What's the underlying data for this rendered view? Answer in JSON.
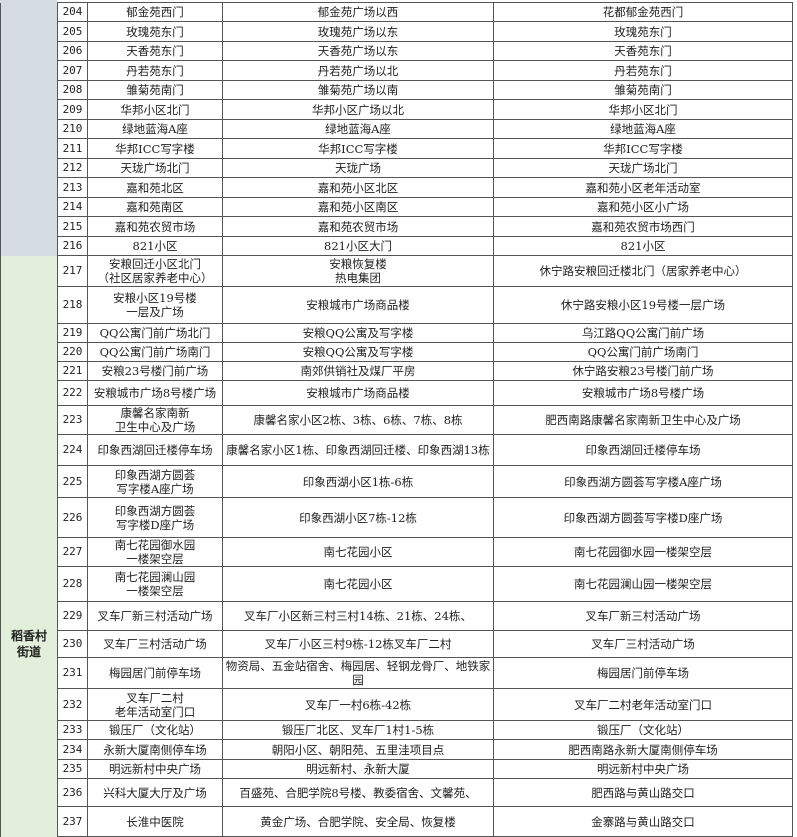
{
  "groups": [
    {
      "label": ""
    },
    {
      "label": "稻香村\n街道"
    }
  ],
  "rows": [
    {
      "no": "204",
      "site": "郁金苑西门",
      "area": "郁金苑广场以西",
      "addr": "花都郁金苑西门"
    },
    {
      "no": "205",
      "site": "玫瑰苑东门",
      "area": "玫瑰苑广场以东",
      "addr": "玫瑰苑东门"
    },
    {
      "no": "206",
      "site": "天香苑东门",
      "area": "天香苑广场以东",
      "addr": "天香苑东门"
    },
    {
      "no": "207",
      "site": "丹若苑东门",
      "area": "丹若苑广场以北",
      "addr": "丹若苑东门"
    },
    {
      "no": "208",
      "site": "雏菊苑南门",
      "area": "雏菊苑广场以南",
      "addr": "雏菊苑南门"
    },
    {
      "no": "209",
      "site": "华邦小区北门",
      "area": "华邦小区广场以北",
      "addr": "华邦小区北门"
    },
    {
      "no": "210",
      "site": "绿地蓝海A座",
      "area": "绿地蓝海A座",
      "addr": "绿地蓝海A座"
    },
    {
      "no": "211",
      "site": "华邦ICC写字楼",
      "area": "华邦ICC写字楼",
      "addr": "华邦ICC写字楼"
    },
    {
      "no": "212",
      "site": "天珑广场北门",
      "area": "天珑广场",
      "addr": "天珑广场北门"
    },
    {
      "no": "213",
      "site": "嘉和苑北区",
      "area": "嘉和苑小区北区",
      "addr": "嘉和苑小区老年活动室"
    },
    {
      "no": "214",
      "site": "嘉和苑南区",
      "area": "嘉和苑小区南区",
      "addr": "嘉和苑小区小广场"
    },
    {
      "no": "215",
      "site": "嘉和苑农贸市场",
      "area": "嘉和苑农贸市场",
      "addr": "嘉和苑农贸市场西门"
    },
    {
      "no": "216",
      "site": "821小区",
      "area": "821小区大门",
      "addr": "821小区"
    },
    {
      "no": "217",
      "site": "安粮回迁小区北门\n（社区居家养老中心）",
      "area": "安粮恢复楼\n热电集团",
      "addr": "休宁路安粮回迁楼北门（居家养老中心）"
    },
    {
      "no": "218",
      "site": "安粮小区19号楼\n一层及广场",
      "area": "安粮城市广场商品楼",
      "addr": "休宁路安粮小区19号楼一层广场"
    },
    {
      "no": "219",
      "site": "QQ公寓门前广场北门",
      "area": "安粮QQ公寓及写字楼",
      "addr": "乌江路QQ公寓门前广场"
    },
    {
      "no": "220",
      "site": "QQ公寓门前广场南门",
      "area": "安粮QQ公寓及写字楼",
      "addr": "QQ公寓门前广场南门"
    },
    {
      "no": "221",
      "site": "安粮23号楼门前广场",
      "area": "南郊供销社及煤厂平房",
      "addr": "休宁路安粮23号楼门前广场"
    },
    {
      "no": "222",
      "site": "安粮城市广场8号楼广场",
      "area": "安粮城市广场商品楼",
      "addr": "安粮城市广场8号楼广场"
    },
    {
      "no": "223",
      "site": "康馨名家南新\n卫生中心及广场",
      "area": "康馨名家小区2栋、3栋、6栋、7栋、8栋",
      "addr": "肥西南路康馨名家南新卫生中心及广场"
    },
    {
      "no": "224",
      "site": "印象西湖回迁楼停车场",
      "area": "康馨名家小区1栋、印象西湖回迁楼、印象西湖13栋",
      "addr": "印象西湖回迁楼停车场"
    },
    {
      "no": "225",
      "site": "印象西湖方圆荟\n写字楼A座广场",
      "area": "印象西湖小区1栋-6栋",
      "addr": "印象西湖方圆荟写字楼A座广场"
    },
    {
      "no": "226",
      "site": "印象西湖方圆荟\n写字楼D座广场",
      "area": "印象西湖小区7栋-12栋",
      "addr": "印象西湖方圆荟写字楼D座广场"
    },
    {
      "no": "227",
      "site": "南七花园御水园\n一楼架空层",
      "area": "南七花园小区",
      "addr": "南七花园御水园一楼架空层"
    },
    {
      "no": "228",
      "site": "南七花园澜山园\n一楼架空层",
      "area": "南七花园小区",
      "addr": "南七花园澜山园一楼架空层"
    },
    {
      "no": "229",
      "site": "叉车厂新三村活动广场",
      "area": "叉车厂小区新三村三村14栋、21栋、24栋、",
      "addr": "叉车厂新三村活动广场"
    },
    {
      "no": "230",
      "site": "叉车厂三村活动广场",
      "area": "叉车厂小区三村9栋-12栋叉车厂二村",
      "addr": "叉车厂三村活动广场"
    },
    {
      "no": "231",
      "site": "梅园居门前停车场",
      "area": "物资局、五金站宿舍、梅园居、轻钢龙骨厂、地铁家园",
      "addr": "梅园居门前停车场"
    },
    {
      "no": "232",
      "site": "叉车厂二村\n老年活动室门口",
      "area": "叉车厂一村6栋-42栋",
      "addr": "叉车厂二村老年活动室门口"
    },
    {
      "no": "233",
      "site": "锻压厂（文化站）",
      "area": "锻压厂北区、叉车厂1村1-5栋",
      "addr": "锻压厂（文化站）"
    },
    {
      "no": "234",
      "site": "永新大厦南侧停车场",
      "area": "朝阳小区、朝阳苑、五里洼项目点",
      "addr": "肥西南路永新大厦南侧停车场"
    },
    {
      "no": "235",
      "site": "明远新村中央广场",
      "area": "明远新村、永新大厦",
      "addr": "明远新村中央广场"
    },
    {
      "no": "236",
      "site": "兴科大厦大厅及广场",
      "area": "百盛苑、合肥学院8号楼、教委宿舍、文馨苑、",
      "addr": "肥西路与黄山路交口"
    },
    {
      "no": "237",
      "site": "长淮中医院",
      "area": "黄金广场、合肥学院、安全局、恢复楼",
      "addr": "金寨路与黄山路交口"
    }
  ],
  "colors": {
    "group_gray": "#d6dce4",
    "group_green": "#e2efda",
    "border": "#555555"
  }
}
